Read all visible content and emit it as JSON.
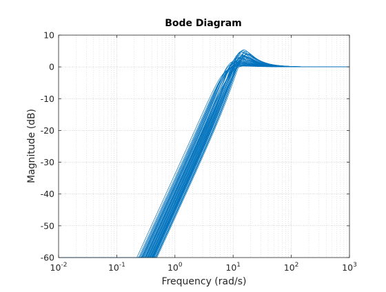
{
  "chart_data": {
    "type": "line",
    "title": "Bode Diagram",
    "xlabel": "Frequency  (rad/s)",
    "ylabel": "Magnitude (dB)",
    "xscale": "log",
    "xlim": [
      0.01,
      1000
    ],
    "ylim": [
      -60,
      10
    ],
    "x_ticks": [
      {
        "value": 0.01,
        "base": "10",
        "exp": "-2"
      },
      {
        "value": 0.1,
        "base": "10",
        "exp": "-1"
      },
      {
        "value": 1,
        "base": "10",
        "exp": "0"
      },
      {
        "value": 10,
        "base": "10",
        "exp": "1"
      },
      {
        "value": 100,
        "base": "10",
        "exp": "2"
      },
      {
        "value": 1000,
        "base": "10",
        "exp": "3"
      }
    ],
    "y_ticks": [
      10,
      0,
      -10,
      -20,
      -30,
      -40,
      -50,
      -60
    ],
    "grid": "major and minor, dotted",
    "line_color": "#0072BD",
    "series_model": "second-order high-pass magnitude responses |s^2/(s^2 + 2*zeta*wn*s + wn^2)| in dB, many random variants",
    "series": [
      {
        "wn": 10.0,
        "zeta": 0.4
      },
      {
        "wn": 12.5,
        "zeta": 0.3
      },
      {
        "wn": 8.5,
        "zeta": 0.55
      },
      {
        "wn": 14.0,
        "zeta": 0.28
      },
      {
        "wn": 11.0,
        "zeta": 0.45
      },
      {
        "wn": 9.5,
        "zeta": 0.5
      },
      {
        "wn": 13.0,
        "zeta": 0.35
      },
      {
        "wn": 7.5,
        "zeta": 0.6
      },
      {
        "wn": 10.5,
        "zeta": 0.38
      },
      {
        "wn": 12.0,
        "zeta": 0.42
      },
      {
        "wn": 15.0,
        "zeta": 0.3
      },
      {
        "wn": 9.0,
        "zeta": 0.48
      },
      {
        "wn": 11.5,
        "zeta": 0.33
      },
      {
        "wn": 8.0,
        "zeta": 0.58
      },
      {
        "wn": 13.5,
        "zeta": 0.4
      },
      {
        "wn": 10.2,
        "zeta": 0.52
      },
      {
        "wn": 12.8,
        "zeta": 0.36
      },
      {
        "wn": 9.8,
        "zeta": 0.44
      },
      {
        "wn": 14.5,
        "zeta": 0.32
      },
      {
        "wn": 7.0,
        "zeta": 0.62
      },
      {
        "wn": 11.8,
        "zeta": 0.39
      },
      {
        "wn": 10.8,
        "zeta": 0.47
      },
      {
        "wn": 13.2,
        "zeta": 0.29
      },
      {
        "wn": 8.8,
        "zeta": 0.53
      },
      {
        "wn": 12.2,
        "zeta": 0.37
      },
      {
        "wn": 9.2,
        "zeta": 0.46
      },
      {
        "wn": 14.8,
        "zeta": 0.34
      },
      {
        "wn": 7.8,
        "zeta": 0.57
      },
      {
        "wn": 11.2,
        "zeta": 0.41
      },
      {
        "wn": 12.6,
        "zeta": 0.31
      },
      {
        "wn": 10.0,
        "zeta": 0.56
      },
      {
        "wn": 13.8,
        "zeta": 0.38
      },
      {
        "wn": 8.3,
        "zeta": 0.49
      },
      {
        "wn": 11.6,
        "zeta": 0.35
      },
      {
        "wn": 9.6,
        "zeta": 0.6
      },
      {
        "wn": 12.9,
        "zeta": 0.43
      },
      {
        "wn": 15.5,
        "zeta": 0.33
      },
      {
        "wn": 10.6,
        "zeta": 0.5
      },
      {
        "wn": 8.6,
        "zeta": 0.45
      },
      {
        "wn": 13.4,
        "zeta": 0.37
      }
    ]
  }
}
